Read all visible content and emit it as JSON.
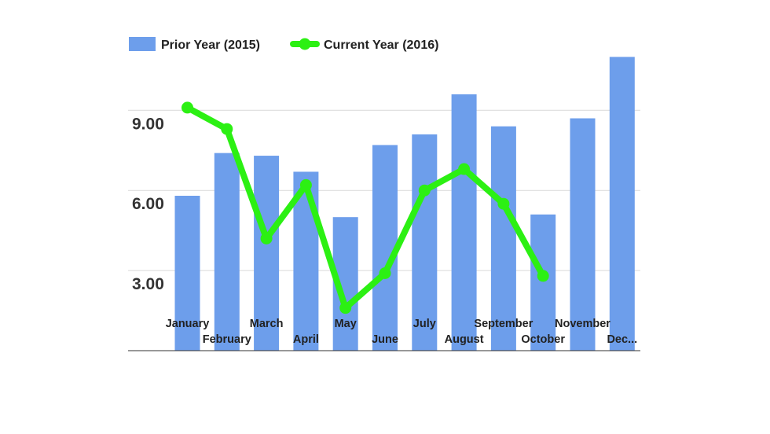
{
  "chart_data": {
    "type": "bar",
    "categories": [
      "January",
      "February",
      "March",
      "April",
      "May",
      "June",
      "July",
      "August",
      "September",
      "October",
      "November",
      "Dec..."
    ],
    "series": [
      {
        "name": "Prior Year (2015)",
        "type": "bar",
        "color": "#6d9eeb",
        "values": [
          5.8,
          7.4,
          7.3,
          6.7,
          5.0,
          7.7,
          8.1,
          9.6,
          8.4,
          5.1,
          8.7,
          11.0
        ]
      },
      {
        "name": "Current Year (2016)",
        "type": "line",
        "color": "#2cf013",
        "values": [
          9.1,
          8.3,
          4.2,
          6.2,
          1.6,
          2.9,
          6.0,
          6.8,
          5.5,
          2.8,
          null,
          null
        ]
      }
    ],
    "y_ticks": [
      "3.00",
      "6.00",
      "9.00"
    ],
    "y_tick_values": [
      3,
      6,
      9
    ],
    "ylim": [
      0,
      11.6
    ],
    "grid": true,
    "legend": "top-left"
  }
}
